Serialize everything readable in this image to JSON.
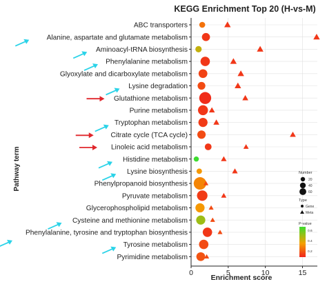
{
  "chart_data": {
    "type": "scatter",
    "title": "KEGG Enrichment Top 20 (H-vs-M)",
    "xlabel": "Enrichment score",
    "ylabel": "Pathway term",
    "xlim": [
      0,
      17
    ],
    "xticks": [
      0,
      5,
      10,
      15
    ],
    "pathways": [
      "ABC transporters",
      "Alanine, aspartate and glutamate metabolism",
      "Aminoacyl-tRNA biosynthesis",
      "Phenylalanine metabolism",
      "Glyoxylate and dicarboxylate metabolism",
      "Lysine degradation",
      "Glutathione metabolism",
      "Purine metabolism",
      "Tryptophan metabolism",
      "Citrate cycle (TCA cycle)",
      "Linoleic acid metabolism",
      "Histidine metabolism",
      "Lysine biosynthesis",
      "Phenylpropanoid biosynthesis",
      "Pyruvate metabolism",
      "Glycerophospholipid metabolism",
      "Cysteine and methionine metabolism",
      "Phenylalanine, tyrosine and tryptophan biosynthesis",
      "Tyrosine metabolism",
      "Pyrimidine metabolism"
    ],
    "series": [
      {
        "name": "Gene",
        "marker": "circle",
        "points": [
          {
            "x": 1.5,
            "number": 8,
            "pvalue": 0.2
          },
          {
            "x": 2.0,
            "number": 20,
            "pvalue": 0.05
          },
          {
            "x": 1.0,
            "number": 10,
            "pvalue": 0.45
          },
          {
            "x": 1.9,
            "number": 30,
            "pvalue": 0.05
          },
          {
            "x": 1.6,
            "number": 25,
            "pvalue": 0.08
          },
          {
            "x": 1.4,
            "number": 18,
            "pvalue": 0.1
          },
          {
            "x": 1.9,
            "number": 55,
            "pvalue": 0.02
          },
          {
            "x": 1.6,
            "number": 35,
            "pvalue": 0.05
          },
          {
            "x": 1.6,
            "number": 28,
            "pvalue": 0.06
          },
          {
            "x": 1.4,
            "number": 22,
            "pvalue": 0.1
          },
          {
            "x": 2.3,
            "number": 12,
            "pvalue": 0.05
          },
          {
            "x": 0.7,
            "number": 5,
            "pvalue": 0.8
          },
          {
            "x": 1.1,
            "number": 6,
            "pvalue": 0.3
          },
          {
            "x": 1.2,
            "number": 62,
            "pvalue": 0.25
          },
          {
            "x": 1.5,
            "number": 40,
            "pvalue": 0.06
          },
          {
            "x": 1.2,
            "number": 28,
            "pvalue": 0.3
          },
          {
            "x": 1.3,
            "number": 28,
            "pvalue": 0.55
          },
          {
            "x": 2.2,
            "number": 30,
            "pvalue": 0.05
          },
          {
            "x": 1.7,
            "number": 30,
            "pvalue": 0.1
          },
          {
            "x": 1.3,
            "number": 25,
            "pvalue": 0.12
          }
        ]
      },
      {
        "name": "Meta",
        "marker": "triangle",
        "points": [
          {
            "x": 4.9,
            "number": 8,
            "pvalue": 0.05
          },
          {
            "x": 16.9,
            "number": 8,
            "pvalue": 0.05
          },
          {
            "x": 9.3,
            "number": 8,
            "pvalue": 0.05
          },
          {
            "x": 5.7,
            "number": 8,
            "pvalue": 0.05
          },
          {
            "x": 6.7,
            "number": 8,
            "pvalue": 0.05
          },
          {
            "x": 6.3,
            "number": 8,
            "pvalue": 0.05
          },
          {
            "x": 7.3,
            "number": 6,
            "pvalue": 0.05
          },
          {
            "x": 2.8,
            "number": 6,
            "pvalue": 0.05
          },
          {
            "x": 3.4,
            "number": 6,
            "pvalue": 0.05
          },
          {
            "x": 13.7,
            "number": 6,
            "pvalue": 0.05
          },
          {
            "x": 7.4,
            "number": 4,
            "pvalue": 0.05
          },
          {
            "x": 4.4,
            "number": 5,
            "pvalue": 0.05
          },
          {
            "x": 5.9,
            "number": 5,
            "pvalue": 0.05
          },
          {
            "x": 2.0,
            "number": 3,
            "pvalue": 0.1
          },
          {
            "x": 4.4,
            "number": 4,
            "pvalue": 0.05
          },
          {
            "x": 2.7,
            "number": 3,
            "pvalue": 0.1
          },
          {
            "x": 2.9,
            "number": 3,
            "pvalue": 0.1
          },
          {
            "x": 3.9,
            "number": 3,
            "pvalue": 0.1
          },
          {
            "x": 1.9,
            "number": 3,
            "pvalue": 0.1
          },
          {
            "x": 2.1,
            "number": 3,
            "pvalue": 0.1
          }
        ]
      }
    ],
    "legend": {
      "number_title": "Number",
      "number_values": [
        20,
        40,
        60
      ],
      "type_title": "Type",
      "type_items": [
        "Gene",
        "Meta"
      ],
      "pvalue_title": "P-value",
      "pvalue_ticks": [
        0.6,
        0.4,
        0.2
      ],
      "placement": "right"
    },
    "annotation_arrows": [
      {
        "pathway_index": 1,
        "color": "#2bd3e8"
      },
      {
        "pathway_index": 2,
        "color": "#2bd3e8"
      },
      {
        "pathway_index": 3,
        "color": "#2bd3e8"
      },
      {
        "pathway_index": 5,
        "color": "#2bd3e8"
      },
      {
        "pathway_index": 6,
        "color": "#e0262b"
      },
      {
        "pathway_index": 8,
        "color": "#2bd3e8"
      },
      {
        "pathway_index": 9,
        "color": "#e0262b"
      },
      {
        "pathway_index": 10,
        "color": "#e0262b"
      },
      {
        "pathway_index": 11,
        "color": "#2bd3e8"
      },
      {
        "pathway_index": 12,
        "color": "#2bd3e8"
      },
      {
        "pathway_index": 16,
        "color": "#2bd3e8"
      },
      {
        "pathway_index": 17,
        "color": "#2bd3e8"
      },
      {
        "pathway_index": 18,
        "color": "#2bd3e8"
      }
    ],
    "colors": {
      "low_p": "#f0241c",
      "mid_p": "#f5a000",
      "high_p": "#3ddc2e",
      "grid": "#e0e0e0"
    }
  }
}
